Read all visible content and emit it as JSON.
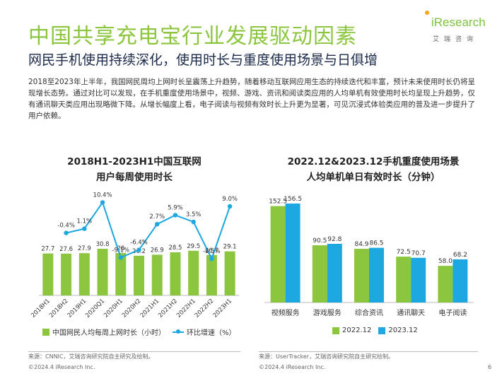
{
  "header": {
    "title": "中国共享充电宝行业发展驱动因素",
    "subtitle": "网民手机使用持续深化，使用时长与重度使用场景与日俱增"
  },
  "logo": {
    "word": "iResearch",
    "sub": "艾瑞咨询"
  },
  "paragraph": "2018至2023年上半年，我国网民周均上网时长呈震荡上升趋势，随着移动互联网应用生态的持续迭代和丰富，预计未来使用时长仍将呈现增长态势。通过对比可以发现，在手机重度使用场景中，视频、游戏、资讯和阅读类应用的人均单机有效使用时长均呈现上升趋势，仅有通讯聊天类应用出现略微下降。从增长幅度上看，电子阅读与视频有效时长上升更为显著，可见沉浸式体验类应用的普及进一步提升了用户依赖。",
  "chart_data": [
    {
      "type": "bar",
      "title": "2018H1-2023H1中国互联网用户每周使用时长",
      "title_line1": "2018H1-2023H1中国互联网",
      "title_line2": "用户每周使用时长",
      "categories": [
        "2018H1",
        "2018H2",
        "2019H1",
        "2020Q1",
        "2020H1",
        "2020H2",
        "2021H1",
        "2021H2",
        "2022H1",
        "2022H2",
        "2023H1"
      ],
      "series": [
        {
          "name": "中国网民人均每周上网时长（小时）",
          "type": "bar",
          "color": "#8cc63f",
          "values": [
            27.7,
            27.6,
            27.9,
            30.8,
            28,
            26.2,
            26.9,
            28.5,
            29.5,
            26.7,
            29.1
          ],
          "labels": [
            "27.7",
            "27.6",
            "27.9",
            "30.8",
            "28",
            "26.2",
            "26.9",
            "28.5",
            "29.5",
            "26.7",
            "29.1"
          ]
        },
        {
          "name": "环比增速（%）",
          "type": "line",
          "color": "#1ca7e0",
          "values": [
            null,
            -0.4,
            1.1,
            10.4,
            -9.1,
            -6.4,
            2.7,
            5.9,
            3.5,
            -9.5,
            9.0
          ],
          "labels": [
            "",
            "-0.4%",
            "1.1%",
            "10.4%",
            "-9.1%",
            "-6.4%",
            "2.7%",
            "5.9%",
            "3.5%",
            "-9.5%",
            "9.0%"
          ]
        }
      ],
      "grid": false,
      "legend_position": "bottom"
    },
    {
      "type": "bar",
      "title": "2022.12&2023.12手机重度使用场景人均单机单日有效时长（分钟）",
      "title_line1": "2022.12&2023.12手机重度使用场景",
      "title_line2": "人均单机单日有效时长（分钟）",
      "categories": [
        "视频服务",
        "游戏服务",
        "综合资讯",
        "通讯聊天",
        "电子阅读"
      ],
      "series": [
        {
          "name": "2022.12",
          "color": "#8cc63f",
          "values": [
            152.5,
            90.5,
            84.9,
            72.5,
            58.0
          ],
          "labels": [
            "152.5",
            "90.5",
            "84.9",
            "72.5",
            "58.0"
          ]
        },
        {
          "name": "2023.12",
          "color": "#1ca7e0",
          "values": [
            156.5,
            92.8,
            86.5,
            70.7,
            68.2
          ],
          "labels": [
            "156.5",
            "92.8",
            "86.5",
            "70.7",
            "68.2"
          ]
        }
      ],
      "grid": false,
      "legend_position": "bottom"
    }
  ],
  "sources": {
    "left": "来源：CNNIC，艾瑞咨询研究院自主研究及绘制。",
    "right": "来源：UserTracker，艾瑞咨询研究院自主研究绘制。"
  },
  "footer": {
    "left": "©2024.4 iResearch Inc.",
    "right": "©2024.4 iResearch Inc.",
    "page": "6"
  }
}
